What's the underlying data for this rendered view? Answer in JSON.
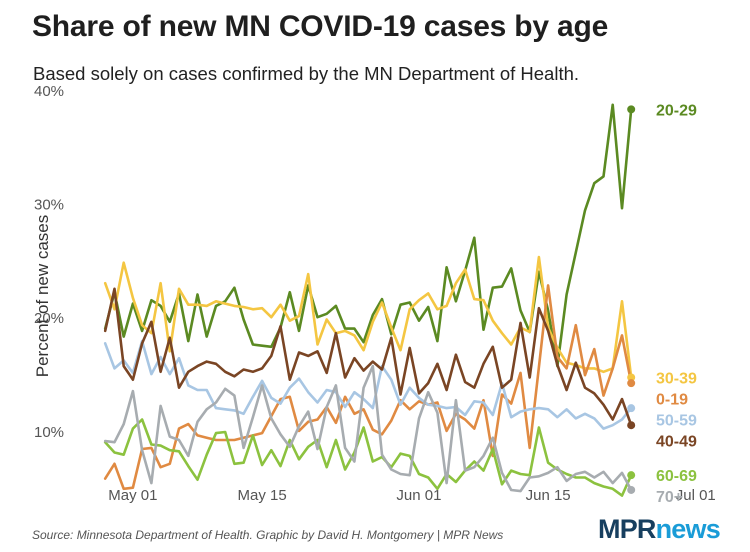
{
  "header": {
    "title": "Share of new MN COVID-19 cases by age",
    "subtitle": "Based solely on cases confirmed by the MN Department of Health."
  },
  "footer": {
    "source": "Source: Minnesota Department of Health. Graphic by David H. Montgomery | MPR News",
    "logo_mpr": "MPR",
    "logo_news": "news"
  },
  "chart_data": {
    "type": "line",
    "title": "Share of new MN COVID-19 cases by age",
    "subtitle": "Based solely on cases confirmed by the MN Department of Health.",
    "xlabel": "",
    "ylabel": "Percent of new cases",
    "x_tick_labels": [
      "May 01",
      "May 15",
      "Jun 01",
      "Jun 15",
      "Jul 01"
    ],
    "y_tick_labels": [
      "10%",
      "20%",
      "30%",
      "40%"
    ],
    "y_ticks": [
      10,
      20,
      30,
      40
    ],
    "ylim": [
      5.5,
      40
    ],
    "x_start": "2020-04-28",
    "x_step_days": 1,
    "xlim": [
      "2020-04-27",
      "2020-07-02"
    ],
    "x_ticks": [
      "2020-05-01",
      "2020-05-15",
      "2020-06-01",
      "2020-06-15",
      "2020-07-01"
    ],
    "grid": false,
    "legend": "direct labels at line ends",
    "series": [
      {
        "name": "20-29",
        "color": "#5b8a22",
        "values": [
          19.0,
          22.2,
          18.3,
          21.2,
          18.8,
          21.5,
          21.0,
          19.6,
          22.1,
          17.9,
          22.0,
          18.3,
          21.0,
          21.4,
          22.6,
          19.8,
          17.6,
          17.5,
          17.4,
          19.1,
          22.2,
          18.8,
          22.8,
          20.0,
          20.3,
          21.0,
          19.0,
          19.0,
          17.8,
          20.2,
          21.6,
          18.5,
          21.1,
          21.3,
          19.7,
          20.9,
          17.9,
          24.4,
          21.4,
          24.1,
          27.0,
          18.9,
          22.6,
          22.7,
          24.3,
          20.6,
          18.7,
          24.0,
          20.6,
          15.7,
          22.0,
          25.7,
          29.4,
          31.8,
          32.4,
          38.7,
          29.6,
          38.3
        ]
      },
      {
        "name": "30-39",
        "color": "#f4c642",
        "values": [
          23.0,
          20.7,
          24.8,
          21.7,
          19.3,
          18.6,
          23.0,
          17.0,
          22.5,
          21.1,
          21.1,
          21.0,
          21.4,
          21.2,
          21.0,
          20.9,
          20.7,
          20.8,
          20.0,
          21.1,
          19.7,
          20.1,
          23.8,
          17.6,
          19.8,
          18.6,
          18.8,
          18.4,
          17.1,
          19.6,
          21.3,
          19.1,
          17.1,
          20.7,
          21.5,
          22.1,
          20.7,
          21.0,
          23.0,
          24.2,
          21.6,
          21.5,
          19.7,
          18.6,
          17.6,
          19.1,
          18.7,
          25.3,
          19.1,
          17.3,
          16.0,
          15.8,
          15.5,
          15.5,
          15.2,
          15.5,
          21.4,
          14.7
        ]
      },
      {
        "name": "0-19",
        "color": "#e08a42",
        "values": [
          5.8,
          7.1,
          4.9,
          5.0,
          8.4,
          8.5,
          6.8,
          7.1,
          10.2,
          10.6,
          9.6,
          9.4,
          9.2,
          9.2,
          9.2,
          9.4,
          9.6,
          9.8,
          11.3,
          12.8,
          13.0,
          10.0,
          10.8,
          11.0,
          12.1,
          10.7,
          13.0,
          11.5,
          11.9,
          10.1,
          9.7,
          10.9,
          12.7,
          11.9,
          12.6,
          12.3,
          12.5,
          10.0,
          11.5,
          11.0,
          10.2,
          12.7,
          7.8,
          13.2,
          12.4,
          15.1,
          8.5,
          15.6,
          22.8,
          16.5,
          15.5,
          19.3,
          14.9,
          17.2,
          13.1,
          15.5,
          18.4,
          14.2
        ]
      },
      {
        "name": "50-59",
        "color": "#a8c6e3",
        "values": [
          17.7,
          15.5,
          16.2,
          15.1,
          17.9,
          15.0,
          16.5,
          15.0,
          16.4,
          14.0,
          13.6,
          13.6,
          12.0,
          11.9,
          11.8,
          11.5,
          13.0,
          14.4,
          12.9,
          12.4,
          13.8,
          14.6,
          13.4,
          12.5,
          13.6,
          13.4,
          12.1,
          13.4,
          12.8,
          12.0,
          15.7,
          14.5,
          12.3,
          13.8,
          12.9,
          12.3,
          12.2,
          12.0,
          12.1,
          11.4,
          12.6,
          12.5,
          11.4,
          14.2,
          11.2,
          11.7,
          11.9,
          12.0,
          11.9,
          11.2,
          11.9,
          11.1,
          11.5,
          11.1,
          10.2,
          10.5,
          11.0,
          12.0
        ]
      },
      {
        "name": "40-49",
        "color": "#7a4524",
        "values": [
          18.8,
          22.5,
          15.7,
          14.5,
          17.7,
          19.6,
          15.2,
          18.2,
          13.8,
          15.2,
          15.7,
          16.1,
          15.9,
          15.2,
          14.8,
          15.4,
          15.2,
          15.5,
          16.6,
          19.2,
          14.5,
          16.9,
          16.6,
          17.0,
          15.1,
          18.6,
          14.7,
          16.4,
          15.3,
          16.1,
          15.4,
          18.2,
          13.2,
          17.3,
          13.3,
          14.2,
          15.9,
          13.6,
          16.7,
          14.3,
          13.8,
          15.9,
          17.4,
          13.8,
          14.5,
          19.5,
          14.7,
          20.8,
          18.8,
          15.8,
          13.6,
          16.0,
          13.8,
          13.3,
          12.3,
          11.0,
          12.8,
          10.5
        ]
      },
      {
        "name": "60-69",
        "color": "#8cc23f",
        "values": [
          9.0,
          8.1,
          7.9,
          10.2,
          11.0,
          8.8,
          8.7,
          8.3,
          8.2,
          6.9,
          5.7,
          7.9,
          9.8,
          9.9,
          7.1,
          7.2,
          9.6,
          7.0,
          8.3,
          6.9,
          9.2,
          7.5,
          8.6,
          9.2,
          6.8,
          9.2,
          6.6,
          8.1,
          10.3,
          7.3,
          7.7,
          6.8,
          8.0,
          7.8,
          6.2,
          5.9,
          4.9,
          6.2,
          5.5,
          6.5,
          7.3,
          6.5,
          8.4,
          5.3,
          6.5,
          6.2,
          6.1,
          10.3,
          7.2,
          6.6,
          6.2,
          5.9,
          5.9,
          5.4,
          5.1,
          4.9,
          4.3,
          6.1
        ]
      },
      {
        "name": "70+",
        "color": "#a7acb0",
        "values": [
          9.1,
          9.0,
          10.6,
          13.5,
          8.3,
          5.4,
          12.2,
          9.5,
          9.2,
          7.8,
          10.8,
          11.9,
          12.5,
          13.7,
          13.1,
          8.5,
          11.2,
          14.0,
          11.1,
          9.7,
          8.6,
          10.4,
          11.7,
          8.4,
          12.1,
          14.0,
          8.5,
          7.3,
          13.8,
          15.7,
          7.9,
          6.6,
          6.2,
          6.1,
          11.1,
          13.4,
          11.6,
          5.4,
          12.7,
          6.5,
          6.8,
          7.8,
          9.4,
          6.3,
          4.8,
          4.7,
          5.9,
          6.0,
          6.3,
          6.8,
          5.6,
          6.2,
          6.4,
          5.9,
          6.4,
          5.4,
          6.3,
          4.8
        ]
      }
    ]
  }
}
